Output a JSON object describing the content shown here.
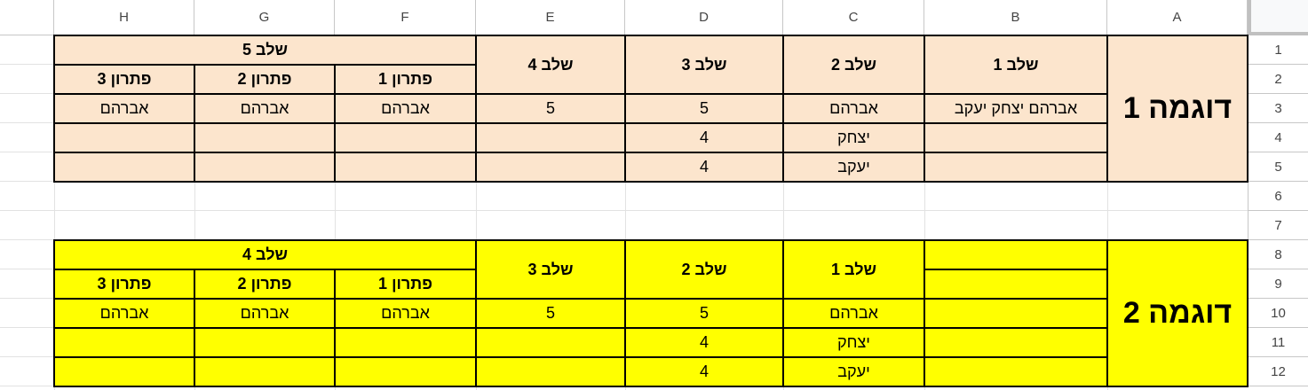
{
  "columns": [
    "H",
    "G",
    "F",
    "E",
    "D",
    "C",
    "B",
    "A"
  ],
  "rows": [
    "1",
    "2",
    "3",
    "4",
    "5",
    "6",
    "7",
    "8",
    "9",
    "10",
    "11",
    "12"
  ],
  "colors": {
    "example1_fill": "#fce5cd",
    "example2_fill": "#ffff00",
    "border": "#000000"
  },
  "cells": {
    "A1": "דוגמה 1",
    "B1": "שלב 1",
    "C1": "שלב 2",
    "D1": "שלב 3",
    "E1": "שלב 4",
    "F1": "שלב 5",
    "F2": "פתרון 1",
    "G2": "פתרון 2",
    "H2": "פתרון 3",
    "B3": "אברהם יצחק יעקב",
    "C3": "אברהם",
    "D3": "5",
    "E3": "5",
    "F3": "אברהם",
    "G3": "אברהם",
    "H3": "אברהם",
    "C4": "יצחק",
    "D4": "4",
    "C5": "יעקב",
    "D5": "4",
    "A8": "דוגמה 2",
    "C8": "שלב 1",
    "D8": "שלב 2",
    "E8": "שלב 3",
    "F8": "שלב 4",
    "F9": "פתרון 1",
    "G9": "פתרון 2",
    "H9": "פתרון 3",
    "C10": "אברהם",
    "D10": "5",
    "E10": "5",
    "F10": "אברהם",
    "G10": "אברהם",
    "H10": "אברהם",
    "C11": "יצחק",
    "D11": "4",
    "C12": "יעקב",
    "D12": "4"
  }
}
